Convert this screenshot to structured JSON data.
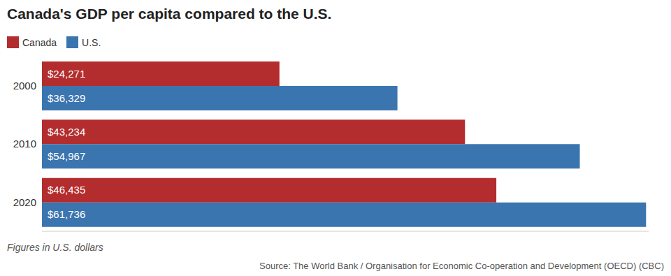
{
  "chart_data": {
    "type": "bar",
    "orientation": "horizontal",
    "title": "Canada's GDP per capita compared to the U.S.",
    "categories": [
      "2000",
      "2010",
      "2020"
    ],
    "series": [
      {
        "name": "Canada",
        "color": "#b32d2e",
        "values": [
          24271,
          43234,
          46435
        ],
        "value_labels": [
          "$24,271",
          "$43,234",
          "$46,435"
        ]
      },
      {
        "name": "U.S.",
        "color": "#3b75af",
        "values": [
          36329,
          54967,
          61736
        ],
        "value_labels": [
          "$36,329",
          "$54,967",
          "$61,736"
        ]
      }
    ],
    "xlim": [
      0,
      62000
    ],
    "data_labels": true,
    "tick_labels": "y",
    "legend": "top left",
    "grid": false,
    "note": "Figures in U.S. dollars",
    "source": "Source: The World Bank / Organisation for Economic Co-operation and Development (OECD) (CBC)"
  }
}
